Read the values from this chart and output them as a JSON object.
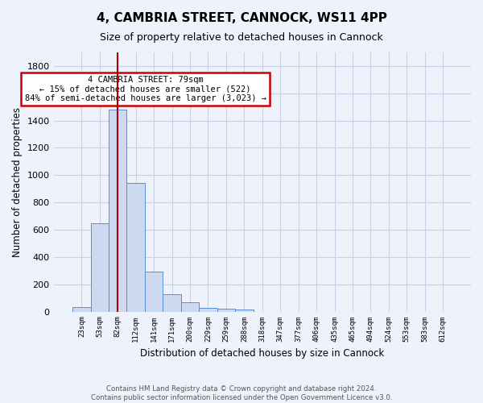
{
  "title1": "4, CAMBRIA STREET, CANNOCK, WS11 4PP",
  "title2": "Size of property relative to detached houses in Cannock",
  "xlabel": "Distribution of detached houses by size in Cannock",
  "ylabel": "Number of detached properties",
  "footer1": "Contains HM Land Registry data © Crown copyright and database right 2024.",
  "footer2": "Contains public sector information licensed under the Open Government Licence v3.0.",
  "annotation_title": "4 CAMBRIA STREET: 79sqm",
  "annotation_line2": "← 15% of detached houses are smaller (522)",
  "annotation_line3": "84% of semi-detached houses are larger (3,023) →",
  "bar_color": "#ccd9f0",
  "bar_edge_color": "#5b8fd4",
  "vline_color": "#aa0000",
  "annotation_box_edge_color": "#cc0000",
  "bg_color": "#eef2fb",
  "grid_color": "#c8d0e8",
  "categories": [
    "23sqm",
    "53sqm",
    "82sqm",
    "112sqm",
    "141sqm",
    "171sqm",
    "200sqm",
    "229sqm",
    "259sqm",
    "288sqm",
    "318sqm",
    "347sqm",
    "377sqm",
    "406sqm",
    "435sqm",
    "465sqm",
    "494sqm",
    "524sqm",
    "553sqm",
    "583sqm",
    "612sqm"
  ],
  "values": [
    35,
    650,
    1480,
    940,
    295,
    130,
    70,
    25,
    20,
    18,
    0,
    0,
    0,
    0,
    0,
    0,
    0,
    0,
    0,
    0,
    0
  ],
  "ylim": [
    0,
    1900
  ],
  "yticks": [
    0,
    200,
    400,
    600,
    800,
    1000,
    1200,
    1400,
    1600,
    1800
  ],
  "vline_x": 2.0
}
